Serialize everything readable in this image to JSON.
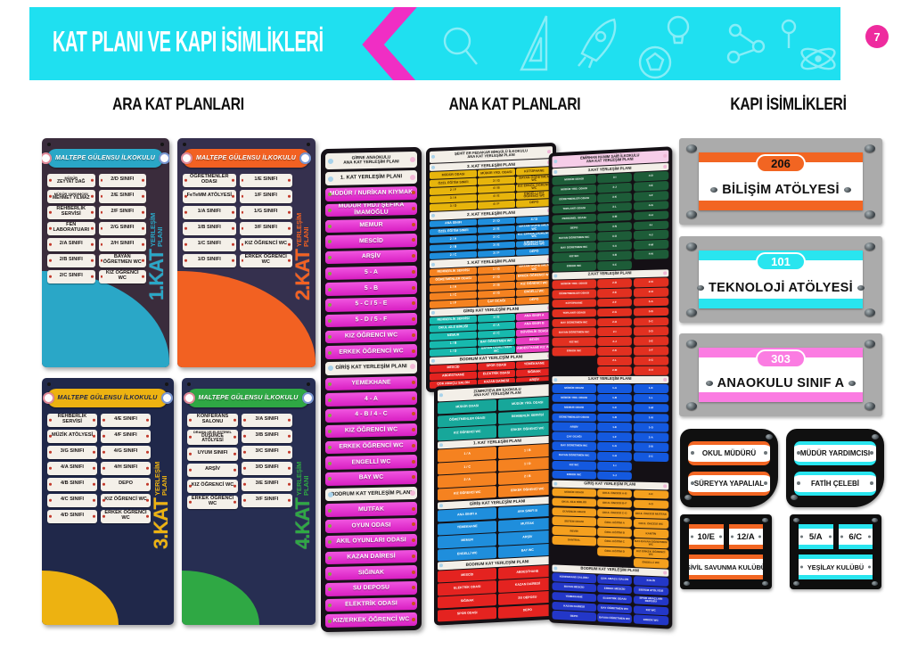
{
  "header": {
    "title": "KAT PLANI VE KAPI İSİMLİKLERİ",
    "page_number": "7"
  },
  "section_titles": {
    "ara": "ARA KAT PLANLARI",
    "ana": "ANA KAT PLANLARI",
    "kapi": "KAPI İSİMLİKLERİ"
  },
  "colors": {
    "banner_cyan": "#1fe0f0",
    "chevron_magenta": "#f02ec4",
    "page_circle_pink": "#ee2b9e",
    "teal": "#2aa7c7",
    "orange": "#f26122",
    "yellow": "#edb211",
    "green": "#2fa844",
    "list_pink": "#e03bd2",
    "plate_orange": "#f26522",
    "plate_cyan": "#29e5ef",
    "plate_pink": "#fb7ce2"
  },
  "ara_panels": [
    {
      "school": "MALTEPE GÜLENSU İLKOKULU",
      "floor_big": "1.KAT",
      "floor_small": "YERLEŞİM PLANI",
      "accent": "#2aa7c7",
      "left": [
        "MÜDÜR|ZEYYAT DAĞ",
        "MÜDÜR YARDIMCISI|MEHMET YILMAZ",
        "REHBERLİK SERVİSİ",
        "FEN LABORATUARI",
        "2/A SINIFI",
        "2/B SINIFI",
        "2/C SINIFI"
      ],
      "right": [
        "2/D SINIFI",
        "2/E SINIFI",
        "2/F SINIFI",
        "2/G SINIFI",
        "2/H SINIFI",
        "BAYAN ÖĞRETMEN WC",
        "KIZ ÖĞRENCİ WC"
      ]
    },
    {
      "school": "MALTEPE GÜLENSU İLKOKULU",
      "floor_big": "2.KAT",
      "floor_small": "YERLEŞİM PLANI",
      "accent": "#f26122",
      "left": [
        "ÖĞRETMENLER ODASI",
        "FeTeMM ATÖLYESİ",
        "1/A SINIFI",
        "1/B SINIFI",
        "1/C SINIFI",
        "1/D SINIFI"
      ],
      "right": [
        "1/E SINIFI",
        "1/F SINIFI",
        "1/G SINIFI",
        "3/F SINIFI",
        "KIZ ÖĞRENCİ WC",
        "ERKEK ÖĞRENCİ WC"
      ]
    },
    {
      "school": "MALTEPE GÜLENSU İLKOKULU",
      "floor_big": "3.KAT",
      "floor_small": "YERLEŞİM PLANI",
      "accent": "#edb211",
      "left": [
        "REHBERLİK SERVİSİ",
        "MÜZİK ATÖLYESİ",
        "3/G SINIFI",
        "4/A SINIFI",
        "4/B SINIFI",
        "4/C SINIFI",
        "4/D SINIFI"
      ],
      "right": [
        "4/E SINIFI",
        "4/F SINIFI",
        "4/G SINIFI",
        "4/H SINIFI",
        "DEPO",
        "KIZ ÖĞRENCİ WC",
        "ERKEK ÖĞRENCİ WC"
      ]
    },
    {
      "school": "MALTEPE GÜLENSU İLKOKULU",
      "floor_big": "4.KAT",
      "floor_small": "YERLEŞİM PLANI",
      "accent": "#2fa844",
      "left": [
        "KONFERANS SALONU",
        "DRAMA VE ELEŞTİREL|DÜŞÜNCE ATÖLYESİ",
        "UYUM SINIFI",
        "ARŞİV",
        "KIZ ÖĞRENCİ WC",
        "ERKEK ÖĞRENCİ WC"
      ],
      "right": [
        "3/A SINIFI",
        "3/B SINIFI",
        "3/C SINIFI",
        "3/D SINIFI",
        "3/E SINIFI",
        "3/F SINIFI"
      ]
    }
  ],
  "ana_list_panel": {
    "items": [
      {
        "t": "GİRNE ANAOKULU|ANA KAT YERLEŞİM PLANI",
        "k": "wh"
      },
      {
        "t": "1. KAT YERLEŞİM PLANI",
        "k": "w"
      },
      {
        "t": "MÜDÜR / NURİKAN KIYMAK",
        "k": "p"
      },
      {
        "t": "MÜDÜR YRD./ ŞEFİKA İMAMOĞLU",
        "k": "p"
      },
      {
        "t": "MEMUR",
        "k": "p"
      },
      {
        "t": "MESCİD",
        "k": "p"
      },
      {
        "t": "ARŞİV",
        "k": "p"
      },
      {
        "t": "5 - A",
        "k": "p"
      },
      {
        "t": "5 - B",
        "k": "p"
      },
      {
        "t": "5 - C / 5 - E",
        "k": "p"
      },
      {
        "t": "5 - D / 5 - F",
        "k": "p"
      },
      {
        "t": "KIZ ÖĞRENCİ WC",
        "k": "p"
      },
      {
        "t": "ERKEK ÖĞRENCİ WC",
        "k": "p"
      },
      {
        "t": "GİRİŞ KAT YERLEŞİM PLANI",
        "k": "w"
      },
      {
        "t": "YEMEKHANE",
        "k": "p"
      },
      {
        "t": "4 - A",
        "k": "p"
      },
      {
        "t": "4 - B / 4 - C",
        "k": "p"
      },
      {
        "t": "KIZ ÖĞRENCİ WC",
        "k": "p"
      },
      {
        "t": "ERKEK ÖĞRENCİ WC",
        "k": "p"
      },
      {
        "t": "ENGELLİ WC",
        "k": "p"
      },
      {
        "t": "BAY WC",
        "k": "p"
      },
      {
        "t": "BODRUM KAT YERLEŞİM PLANI",
        "k": "w"
      },
      {
        "t": "MUTFAK",
        "k": "p"
      },
      {
        "t": "OYUN ODASI",
        "k": "p"
      },
      {
        "t": "AKIL OYUNLARI ODASI",
        "k": "p"
      },
      {
        "t": "KAZAN DAİRESİ",
        "k": "p"
      },
      {
        "t": "SIĞINAK",
        "k": "p"
      },
      {
        "t": "SU DEPOSU",
        "k": "p"
      },
      {
        "t": "ELEKTRİK ODASI",
        "k": "p"
      },
      {
        "t": "KIZ/ERKEK ÖĞRENCİ WC",
        "k": "p"
      }
    ]
  },
  "ana_grid_panels": [
    {
      "header": "ŞEHİT ER FEDAKAR BİRGÜLÜ İLKOKULU|ANA KAT YERLEŞİM PLANI",
      "sections": [
        {
          "title": "3. KAT YERLEŞİM PLANI",
          "color": "#e7b50c",
          "text": "dark",
          "rows": [
            [
              "MÜDÜR ODASI",
              "MÜDÜR YRD. ODASI",
              "KÜTÜPHANE"
            ],
            [
              "ÖZEL EĞİTİM SINIFI",
              "3 / G",
              "BAYAN ÖĞRETMEN WC"
            ],
            [
              "2 / F",
              "4 / B",
              "KIZ ERKEK ÖĞRENCİ WC"
            ],
            [
              "3 / A",
              "4 / E",
              "ENGELLİ KIZ ÖĞRENCİ WC"
            ],
            [
              "3 / D",
              "4 / F",
              "DEPO"
            ]
          ]
        },
        {
          "title": "2. KAT YERLEŞİM PLANI",
          "color": "#1f8edc",
          "rows": [
            [
              "ANA SINIFI",
              "2 / D",
              "4 / D"
            ],
            [
              "ÖZEL EĞİTİM SINIFI",
              "2 / E",
              "BAYAN ÖĞRETMEN WC"
            ],
            [
              "2 / A",
              "3 / C",
              "KIZ ERKEK ÖĞRENCİ WC"
            ],
            [
              "2 / B",
              "3 / E",
              "ENGELLİ KIZ ÖĞRENCİ WC"
            ],
            [
              "2 / C",
              "3 / F",
              "DEPO"
            ]
          ]
        },
        {
          "title": "1. KAT YERLEŞİM PLANI",
          "color": "#f58220",
          "rows": [
            [
              "REHBERLİK SERVİSİ",
              "1 / G",
              "BAYAN ÖĞRETMEN WC"
            ],
            [
              "ÖĞRETMENLER ODASI",
              "2 / G",
              "ERKEK ÖĞRENCİ WC"
            ],
            [
              "1 / A",
              "3 / B",
              "KIZ ÖĞRENCİ WC"
            ],
            [
              "1 / C",
              "4 / G",
              "ENGELLİ WC"
            ],
            [
              "1 / F",
              "ÇAY OCAĞI",
              "DEPO"
            ]
          ]
        },
        {
          "title": "GİRİŞ KAT YERLEŞİM PLANI",
          "color": "#17b9ae",
          "alt": "#e93cc0",
          "rows": [
            [
              "REHBERLİK SERVİSİ",
              "1 / E",
              "ANA SINIFI A"
            ],
            [
              "OKUL AİLE BİRLİĞİ",
              "4 / A",
              "ANA SINIFI B"
            ],
            [
              "MEMUR",
              "4 / C",
              "GÜVENLİK ODASI"
            ],
            [
              "1 / B",
              "BAY ÖĞRETMEN WC",
              "REVİR"
            ],
            [
              "1 / D",
              "BAYAN ÖĞRETMEN WC",
              "ABDESTHANE KIZ WC"
            ]
          ]
        },
        {
          "title": "BODRUM KAT YERLEŞİM PLANI",
          "color": "#e42320",
          "rows": [
            [
              "MESCİD",
              "SPOR ODASI",
              "YEMEKHANE"
            ],
            [
              "ABDESTHANE",
              "ELEKTRİK ODASI",
              "SIĞINAK"
            ],
            [
              "ÇOK AMAÇLI SALON",
              "KAZAN DAİRESİ",
              "ARŞİV"
            ]
          ]
        }
      ]
    },
    {
      "header": "ZÜMRÜTEVLER İLKOKULU|ANA KAT YERLEŞİM PLANI",
      "sections": [
        {
          "title": "",
          "color": "#17a79a",
          "rows": [
            [
              "MÜDÜR ODASI",
              "MÜDÜR YRD. ODASI"
            ],
            [
              "ÖĞRETMENLER ODASI",
              "REHBERLİK SERVİSİ"
            ],
            [
              "KIZ ÖĞRENCİ WC",
              "ERKEK ÖĞRENCİ WC"
            ]
          ]
        },
        {
          "title": "1. KAT YERLEŞİM PLANI",
          "color": "#f58220",
          "rows": [
            [
              "1 / A",
              "1 / B"
            ],
            [
              "1 / C",
              "1 / D"
            ],
            [
              "2 / A",
              "2 / B"
            ],
            [
              "KIZ ÖĞRENCİ WC",
              "ERKEK ÖĞRENCİ WC"
            ]
          ]
        },
        {
          "title": "GİRİŞ KAT YERLEŞİM PLANI",
          "color": "#1f8edc",
          "rows": [
            [
              "ANA SINIFI A",
              "ANA SINIFI B"
            ],
            [
              "YEMEKHANE",
              "MUTFAK"
            ],
            [
              "MEMUR",
              "ARŞİV"
            ],
            [
              "ENGELLİ WC",
              "BAY WC"
            ]
          ]
        },
        {
          "title": "BODRUM KAT YERLEŞİM PLANI",
          "color": "#e42320",
          "rows": [
            [
              "MESCİD",
              "ABDESTHANE"
            ],
            [
              "ELEKTRİK ODASI",
              "KAZAN DAİRESİ"
            ],
            [
              "SIĞINAK",
              "SU DEPOSU"
            ],
            [
              "SPOR ODASI",
              "DEPO"
            ]
          ]
        }
      ]
    },
    {
      "header": "EMİRHAN HANIM ŞAİR İLKOKULU|ANA KAT YERLEŞİM PLANI",
      "sections": [
        {
          "title": "3.KAT YERLEŞİM PLANI",
          "color": "#1d5c38",
          "rows": [
            [
              "MÜDÜR ODASI",
              "3-I",
              "4-D"
            ],
            [
              "MÜDÜR YRD. ODASI",
              "3-J",
              "4-E"
            ],
            [
              "ÖĞRETMENLER ODASI",
              "3-K",
              "4-F"
            ],
            [
              "TOPLANTI ODASI",
              "3-L",
              "4-G"
            ],
            [
              "PERSONEL ODASI",
              "3-M",
              "4-H"
            ],
            [
              "DEPO",
              "3-N",
              "4-I"
            ],
            [
              "BAYAN ÖĞRETMEN WC",
              "3-O",
              "4-J"
            ],
            [
              "BAY ÖĞRETMEN WC",
              "4-A",
              "4-M"
            ],
            [
              "KIZ WC",
              "4-B",
              "4-N"
            ],
            [
              "ERKEK WC",
              "4-C",
              ""
            ]
          ]
        },
        {
          "title": "2.KAT YERLEŞİM PLANI",
          "color": "#e23020",
          "rows": [
            [
              "MÜDÜR YRD. ODASI",
              "2-D",
              "2-N"
            ],
            [
              "ÖĞRETMENLER ODASI",
              "2-E",
              "2-O"
            ],
            [
              "KÜTÜPHANE",
              "2-F",
              "3-A"
            ],
            [
              "TOPLANTI ODASI",
              "2-G",
              "3-B"
            ],
            [
              "BAY ÖĞRETMEN WC",
              "2-H",
              "3-C"
            ],
            [
              "BAYAN ÖĞRETMEN WC",
              "2-I",
              "3-D"
            ],
            [
              "KIZ WC",
              "2-J",
              "3-E"
            ],
            [
              "ERKEK WC",
              "2-K",
              "3-F"
            ],
            [
              "",
              "2-L",
              "3-G"
            ],
            [
              "",
              "2-M",
              "3-H"
            ]
          ]
        },
        {
          "title": "1.KAT YERLEŞİM PLANI",
          "color": "#1459df",
          "rows": [
            [
              "MÜDÜR ODASI",
              "1-A",
              "1-K"
            ],
            [
              "MÜDÜR YRD. ODASI",
              "1-B",
              "1-L"
            ],
            [
              "MEMUR ODASI",
              "1-C",
              "1-M"
            ],
            [
              "ÖĞRETMENLER ODASI",
              "1-D",
              "1-N"
            ],
            [
              "ARŞİV",
              "1-E",
              "1-O"
            ],
            [
              "ÇAY OCAĞI",
              "1-F",
              "2-A"
            ],
            [
              "BAY ÖĞRETMEN WC",
              "1-G",
              "2-B"
            ],
            [
              "BAYAN ÖĞRETMEN WC",
              "1-H",
              "2-C"
            ],
            [
              "KIZ WC",
              "1-I",
              ""
            ],
            [
              "ERKEK WC",
              "1-J",
              ""
            ]
          ]
        },
        {
          "title": "GİRİŞ KAT YERLEŞİM PLANI",
          "color": "#f5a01e",
          "text": "dark",
          "rows": [
            [
              "MÜDÜR ODASI",
              "OKUL ÖNCESİ A-B",
              "4-K"
            ],
            [
              "OKUL AİLE BİRLİĞİ",
              "OKUL ÖNCESİ B-F",
              "4-O"
            ],
            [
              "GÜVENLİK ODASI",
              "OKUL ÖNCESİ C-G",
              "OKUL ÖNCESİ MUTFAK"
            ],
            [
              "SİSTEM ODASI",
              "ÖZEL EĞİTİM A",
              "OKUL ÖNCESİ WC"
            ],
            [
              "REVİR",
              "ÖZEL EĞİTİM B",
              "KANTİN"
            ],
            [
              "SANTRAL",
              "ÖZEL EĞİTİM C",
              "BAY-BAYAN ÖĞRETMEN WC"
            ],
            [
              "",
              "ÖZEL EĞİTİM D",
              "KIZ ERKEK ÖĞRENCİ WC"
            ],
            [
              "",
              "",
              "ENGELLİ WC"
            ]
          ]
        },
        {
          "title": "BODRUM KAT YERLEŞİM PLANI",
          "color": "#2337c8",
          "rows": [
            [
              "KONFERANS SALONU",
              "ÇOK AMAÇLI SALON",
              "KULİS"
            ],
            [
              "BAYAN MESCİD",
              "ERKEK MESCİD",
              "SİSTEM ATÖLYESİ"
            ],
            [
              "YEMEKHANE",
              "ELEKTRİK ODASI",
              "SPOR ARAÇLARI DEPOSU"
            ],
            [
              "KAZAN DAİRESİ",
              "BAY ÖĞRETMEN WC",
              "KIZ WC"
            ],
            [
              "DEPO",
              "BAYAN ÖĞRETMEN WC",
              "ERKEK WC"
            ]
          ]
        }
      ]
    }
  ],
  "door_plates": [
    {
      "number": "206",
      "name": "BİLİŞİM ATÖLYESİ",
      "color": "#f26522",
      "number_dark": true
    },
    {
      "number": "101",
      "name": "TEKNOLOJİ ATÖLYESİ",
      "color": "#29e5ef",
      "number_dark": false
    },
    {
      "number": "303",
      "name": "ANAOKULU SINIF A",
      "color": "#fb7ce2",
      "number_dark": false
    }
  ],
  "name_plates": [
    {
      "line1": "OKUL MÜDÜRÜ",
      "line2": "SÜREYYA YAPALIAL",
      "color": "#f26522"
    },
    {
      "line1": "MÜDÜR YARDIMCISI",
      "line2": "FATİH ÇELEBİ",
      "color": "#29e5ef"
    }
  ],
  "club_plates": [
    {
      "cells": [
        "10/E",
        "12/A"
      ],
      "label": "SİVİL SAVUNMA KULÜBÜ",
      "color": "#f26522"
    },
    {
      "cells": [
        "5/A",
        "6/C"
      ],
      "label": "YEŞİLAY KULÜBÜ",
      "color": "#29e5ef"
    }
  ]
}
